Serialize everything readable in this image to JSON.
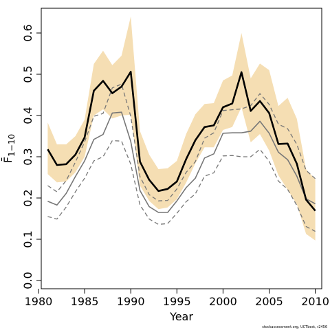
{
  "chart_data": {
    "type": "line",
    "xlabel": "Year",
    "ylabel": "F̄",
    "ylabel_subscript": "1−10",
    "xlim": [
      1980.3,
      2010.7
    ],
    "ylim": [
      -0.02,
      0.66
    ],
    "x_ticks": [
      1980,
      1985,
      1990,
      1995,
      2000,
      2005,
      2010
    ],
    "x_tick_labels": [
      "1980",
      "1985",
      "1990",
      "1995",
      "2000",
      "2005",
      "2010"
    ],
    "y_ticks": [
      0.0,
      0.1,
      0.2,
      0.3,
      0.4,
      0.5,
      0.6
    ],
    "y_tick_labels": [
      "0.0",
      "0.1",
      "0.2",
      "0.3",
      "0.4",
      "0.5",
      "0.6"
    ],
    "grid": false,
    "legend": "none",
    "footnote": "stockassessment.org, UCTbest, r2456",
    "x": [
      1981,
      1982,
      1983,
      1984,
      1985,
      1986,
      1987,
      1988,
      1989,
      1990,
      1991,
      1992,
      1993,
      1994,
      1995,
      1996,
      1997,
      1998,
      1999,
      2000,
      2001,
      2002,
      2003,
      2004,
      2005,
      2006,
      2007,
      2008,
      2009,
      2010
    ],
    "series": [
      {
        "values": [
          0.318,
          0.28,
          0.282,
          0.305,
          0.347,
          0.46,
          0.484,
          0.454,
          0.47,
          0.506,
          0.288,
          0.244,
          0.217,
          0.222,
          0.24,
          0.294,
          0.34,
          0.372,
          0.376,
          0.42,
          0.429,
          0.505,
          0.411,
          0.435,
          0.406,
          0.331,
          0.332,
          0.283,
          0.196,
          0.169
        ],
        "color": "#000000",
        "style": "solid-bold"
      },
      {
        "values": [
          0.192,
          0.183,
          0.211,
          0.252,
          0.29,
          0.342,
          0.354,
          0.406,
          0.408,
          0.337,
          0.218,
          0.179,
          0.165,
          0.165,
          0.193,
          0.225,
          0.248,
          0.297,
          0.307,
          0.357,
          0.358,
          0.358,
          0.362,
          0.386,
          0.357,
          0.311,
          0.293,
          0.253,
          0.198,
          0.186
        ],
        "color": "#777777",
        "style": "solid"
      },
      {
        "values": [
          0.23,
          0.215,
          0.242,
          0.287,
          0.336,
          0.398,
          0.405,
          0.467,
          0.476,
          0.398,
          0.252,
          0.208,
          0.193,
          0.194,
          0.222,
          0.262,
          0.288,
          0.345,
          0.358,
          0.412,
          0.414,
          0.416,
          0.424,
          0.453,
          0.427,
          0.379,
          0.368,
          0.33,
          0.267,
          0.247
        ],
        "color": "#777777",
        "style": "dashed"
      },
      {
        "values": [
          0.155,
          0.149,
          0.178,
          0.215,
          0.248,
          0.29,
          0.3,
          0.339,
          0.338,
          0.282,
          0.183,
          0.149,
          0.136,
          0.138,
          0.163,
          0.191,
          0.21,
          0.253,
          0.261,
          0.302,
          0.303,
          0.3,
          0.3,
          0.318,
          0.289,
          0.241,
          0.221,
          0.182,
          0.131,
          0.119
        ],
        "color": "#777777",
        "style": "dashed"
      }
    ],
    "band": {
      "color": "#f5deb3",
      "upper": [
        0.383,
        0.33,
        0.33,
        0.35,
        0.39,
        0.525,
        0.557,
        0.522,
        0.545,
        0.64,
        0.362,
        0.305,
        0.27,
        0.272,
        0.29,
        0.355,
        0.403,
        0.428,
        0.43,
        0.485,
        0.497,
        0.6,
        0.49,
        0.526,
        0.51,
        0.423,
        0.443,
        0.392,
        0.27,
        0.245
      ],
      "lower": [
        0.258,
        0.238,
        0.24,
        0.262,
        0.3,
        0.4,
        0.415,
        0.393,
        0.4,
        0.402,
        0.23,
        0.193,
        0.173,
        0.177,
        0.197,
        0.237,
        0.284,
        0.323,
        0.323,
        0.365,
        0.372,
        0.42,
        0.335,
        0.355,
        0.315,
        0.255,
        0.22,
        0.185,
        0.113,
        0.097
      ]
    }
  }
}
